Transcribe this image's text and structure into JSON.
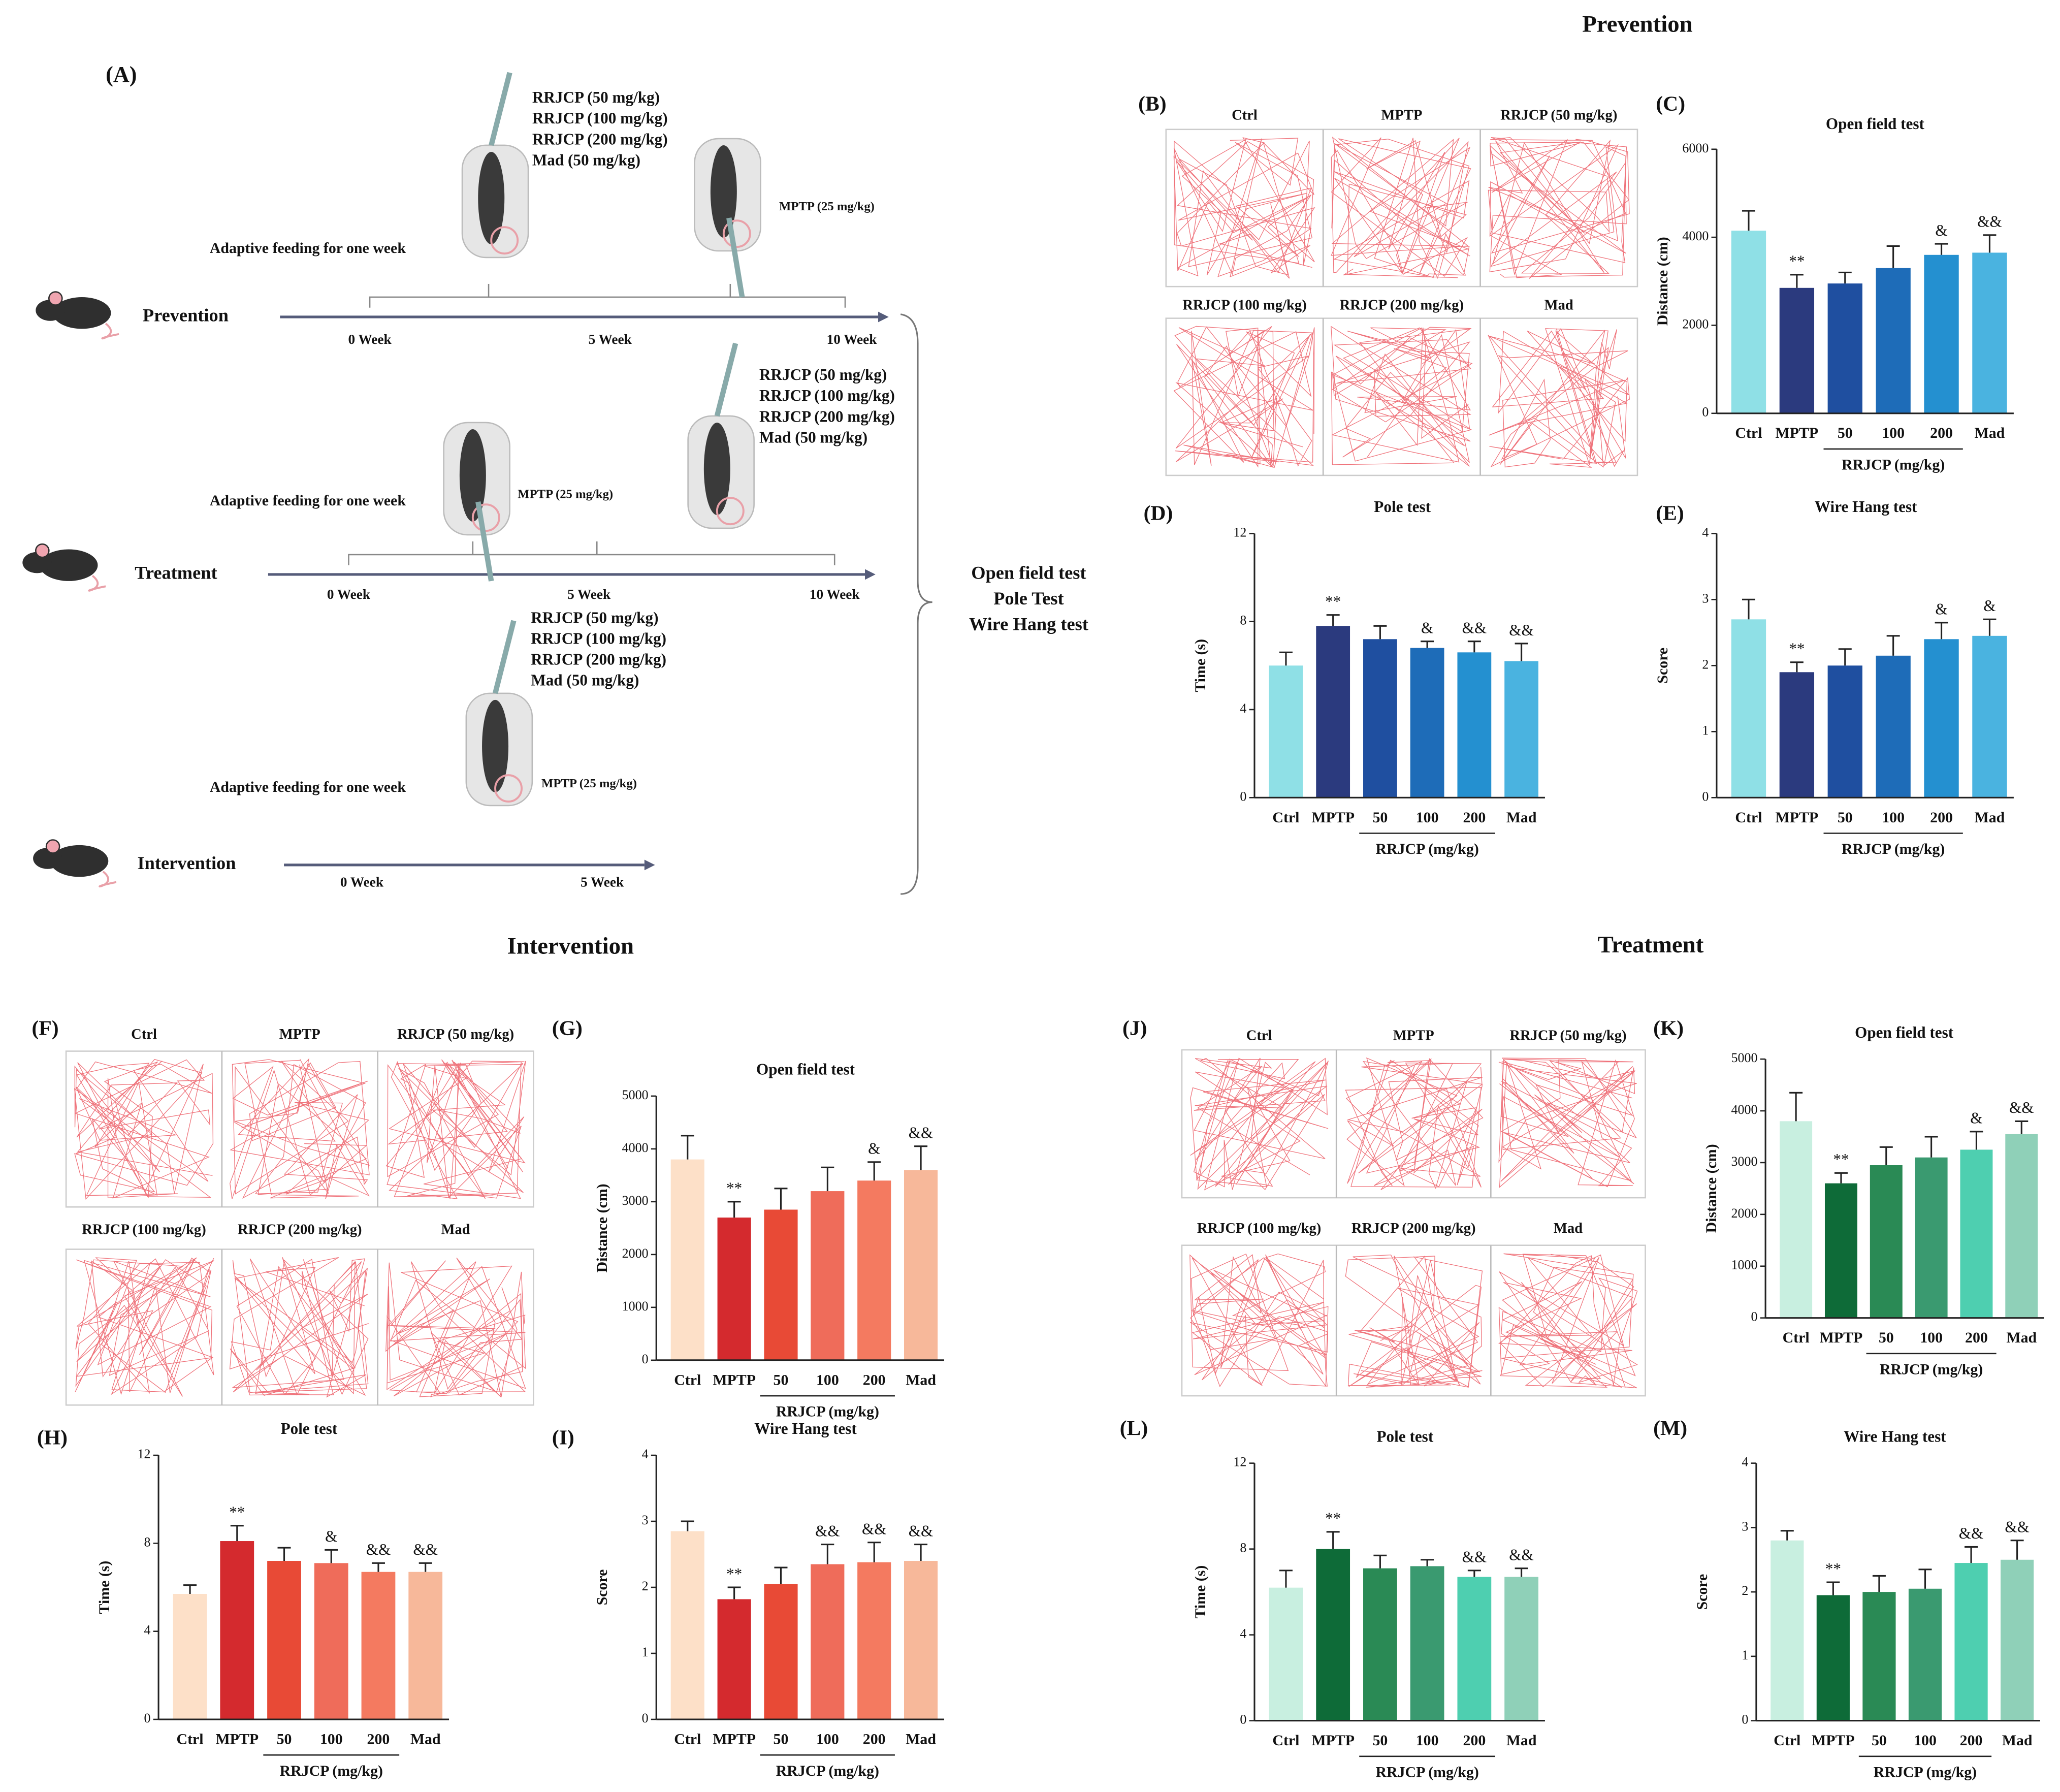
{
  "sections": {
    "prevention": "Prevention",
    "intervention": "Intervention",
    "treatment": "Treatment"
  },
  "panel_a": {
    "letter": "(A)",
    "tests": [
      "Open field test",
      "Pole Test",
      "Wire Hang test"
    ],
    "groups": [
      {
        "name": "Prevention",
        "adaptive": "Adaptive feeding for one week",
        "mptp": "MPTP (25 mg/kg)",
        "doses": [
          "RRJCP (50 mg/kg)",
          "RRJCP (100 mg/kg)",
          "RRJCP (200 mg/kg)",
          "Mad (50 mg/kg)"
        ],
        "weeks": [
          "0 Week",
          "5 Week",
          "10 Week"
        ]
      },
      {
        "name": "Treatment",
        "adaptive": "Adaptive feeding for one week",
        "mptp": "MPTP (25 mg/kg)",
        "doses": [
          "RRJCP (50 mg/kg)",
          "RRJCP (100 mg/kg)",
          "RRJCP (200 mg/kg)",
          "Mad (50 mg/kg)"
        ],
        "weeks": [
          "0 Week",
          "5 Week",
          "10 Week"
        ]
      },
      {
        "name": "Intervention",
        "adaptive": "Adaptive feeding for one week",
        "mptp": "MPTP (25 mg/kg)",
        "doses": [
          "RRJCP (50 mg/kg)",
          "RRJCP (100 mg/kg)",
          "RRJCP (200 mg/kg)",
          "Mad (50 mg/kg)"
        ],
        "weeks": [
          "0 Week",
          "5 Week"
        ]
      }
    ]
  },
  "trace_panels": [
    {
      "panel": "(B)",
      "labels": [
        "Ctrl",
        "MPTP",
        "RRJCP (50 mg/kg)",
        "RRJCP (100 mg/kg)",
        "RRJCP (200 mg/kg)",
        "Mad"
      ]
    },
    {
      "panel": "(F)",
      "labels": [
        "Ctrl",
        "MPTP",
        "RRJCP (50 mg/kg)",
        "RRJCP (100 mg/kg)",
        "RRJCP (200 mg/kg)",
        "Mad"
      ]
    },
    {
      "panel": "(J)",
      "labels": [
        "Ctrl",
        "MPTP",
        "RRJCP (50 mg/kg)",
        "RRJCP (100 mg/kg)",
        "RRJCP (200 mg/kg)",
        "Mad"
      ]
    }
  ],
  "chart_data": [
    {
      "type": "bar",
      "panel": "(C)",
      "title": "Open field test",
      "ylabel": "Distance (cm)",
      "group_label": "RRJCP (mg/kg)",
      "categories": [
        "Ctrl",
        "MPTP",
        "50",
        "100",
        "200",
        "Mad"
      ],
      "values": [
        4150,
        2850,
        2950,
        3300,
        3600,
        3650
      ],
      "errors": [
        450,
        300,
        250,
        500,
        250,
        400
      ],
      "annotations": [
        null,
        "**",
        null,
        null,
        "&",
        "&&"
      ],
      "colors": [
        "#8fe0e6",
        "#2b3a7e",
        "#1f4fa0",
        "#1e6cb8",
        "#2490d0",
        "#4ab3e0"
      ],
      "ylim": [
        0,
        6000
      ],
      "yticks": [
        0,
        2000,
        4000,
        6000
      ]
    },
    {
      "type": "bar",
      "panel": "(D)",
      "title": "Pole test",
      "ylabel": "Time (s)",
      "group_label": "RRJCP (mg/kg)",
      "categories": [
        "Ctrl",
        "MPTP",
        "50",
        "100",
        "200",
        "Mad"
      ],
      "values": [
        6.0,
        7.8,
        7.2,
        6.8,
        6.6,
        6.2
      ],
      "errors": [
        0.6,
        0.5,
        0.6,
        0.3,
        0.5,
        0.8
      ],
      "annotations": [
        null,
        "**",
        null,
        "&",
        "&&",
        "&&"
      ],
      "colors": [
        "#8fe0e6",
        "#2b3a7e",
        "#1f4fa0",
        "#1e6cb8",
        "#2490d0",
        "#4ab3e0"
      ],
      "ylim": [
        0,
        12
      ],
      "yticks": [
        0,
        4,
        8,
        12
      ]
    },
    {
      "type": "bar",
      "panel": "(E)",
      "title": "Wire Hang test",
      "ylabel": "Score",
      "group_label": "RRJCP (mg/kg)",
      "categories": [
        "Ctrl",
        "MPTP",
        "50",
        "100",
        "200",
        "Mad"
      ],
      "values": [
        2.7,
        1.9,
        2.0,
        2.15,
        2.4,
        2.45
      ],
      "errors": [
        0.3,
        0.15,
        0.25,
        0.3,
        0.25,
        0.25
      ],
      "annotations": [
        null,
        "**",
        null,
        null,
        "&",
        "&"
      ],
      "colors": [
        "#8fe0e6",
        "#2b3a7e",
        "#1f4fa0",
        "#1e6cb8",
        "#2490d0",
        "#4ab3e0"
      ],
      "ylim": [
        0,
        4
      ],
      "yticks": [
        0,
        1,
        2,
        3,
        4
      ]
    },
    {
      "type": "bar",
      "panel": "(G)",
      "title": "Open field test",
      "ylabel": "Distance (cm)",
      "group_label": "RRJCP (mg/kg)",
      "categories": [
        "Ctrl",
        "MPTP",
        "50",
        "100",
        "200",
        "Mad"
      ],
      "values": [
        3800,
        2700,
        2850,
        3200,
        3400,
        3600
      ],
      "errors": [
        450,
        300,
        400,
        450,
        350,
        450
      ],
      "annotations": [
        null,
        "**",
        null,
        null,
        "&",
        "&&"
      ],
      "colors": [
        "#fde0c8",
        "#d42a2e",
        "#e84a36",
        "#ef6c5a",
        "#f47a60",
        "#f7b89a"
      ],
      "ylim": [
        0,
        5000
      ],
      "yticks": [
        0,
        1000,
        2000,
        3000,
        4000,
        5000
      ]
    },
    {
      "type": "bar",
      "panel": "(H)",
      "title": "Pole test",
      "ylabel": "Time (s)",
      "group_label": "RRJCP (mg/kg)",
      "categories": [
        "Ctrl",
        "MPTP",
        "50",
        "100",
        "200",
        "Mad"
      ],
      "values": [
        5.7,
        8.1,
        7.2,
        7.1,
        6.7,
        6.7
      ],
      "errors": [
        0.4,
        0.7,
        0.6,
        0.6,
        0.4,
        0.4
      ],
      "annotations": [
        null,
        "**",
        null,
        "&",
        "&&",
        "&&"
      ],
      "colors": [
        "#fde0c8",
        "#d42a2e",
        "#e84a36",
        "#ef6c5a",
        "#f47a60",
        "#f7b89a"
      ],
      "ylim": [
        0,
        12
      ],
      "yticks": [
        0,
        4,
        8,
        12
      ]
    },
    {
      "type": "bar",
      "panel": "(I)",
      "title": "Wire Hang test",
      "ylabel": "Score",
      "group_label": "RRJCP (mg/kg)",
      "categories": [
        "Ctrl",
        "MPTP",
        "50",
        "100",
        "200",
        "Mad"
      ],
      "values": [
        2.85,
        1.82,
        2.05,
        2.35,
        2.38,
        2.4
      ],
      "errors": [
        0.15,
        0.18,
        0.25,
        0.3,
        0.3,
        0.25
      ],
      "annotations": [
        null,
        "**",
        null,
        "&&",
        "&&",
        "&&"
      ],
      "colors": [
        "#fde0c8",
        "#d42a2e",
        "#e84a36",
        "#ef6c5a",
        "#f47a60",
        "#f7b89a"
      ],
      "ylim": [
        0,
        4
      ],
      "yticks": [
        0,
        1,
        2,
        3,
        4
      ]
    },
    {
      "type": "bar",
      "panel": "(K)",
      "title": "Open field test",
      "ylabel": "Distance (cm)",
      "group_label": "RRJCP (mg/kg)",
      "categories": [
        "Ctrl",
        "MPTP",
        "50",
        "100",
        "200",
        "Mad"
      ],
      "values": [
        3800,
        2600,
        2950,
        3100,
        3250,
        3550
      ],
      "errors": [
        550,
        200,
        350,
        400,
        350,
        250
      ],
      "annotations": [
        null,
        "**",
        null,
        null,
        "&",
        "&&"
      ],
      "colors": [
        "#c8efe0",
        "#0e6b38",
        "#2a8a55",
        "#3a9a70",
        "#4ecfb0",
        "#8fd0b8"
      ],
      "ylim": [
        0,
        5000
      ],
      "yticks": [
        0,
        1000,
        2000,
        3000,
        4000,
        5000
      ]
    },
    {
      "type": "bar",
      "panel": "(L)",
      "title": "Pole test",
      "ylabel": "Time (s)",
      "group_label": "RRJCP (mg/kg)",
      "categories": [
        "Ctrl",
        "MPTP",
        "50",
        "100",
        "200",
        "Mad"
      ],
      "values": [
        6.2,
        8.0,
        7.1,
        7.2,
        6.7,
        6.7
      ],
      "errors": [
        0.8,
        0.8,
        0.6,
        0.3,
        0.3,
        0.4
      ],
      "annotations": [
        null,
        "**",
        null,
        null,
        "&&",
        "&&"
      ],
      "colors": [
        "#c8efe0",
        "#0e6b38",
        "#2a8a55",
        "#3a9a70",
        "#4ecfb0",
        "#8fd0b8"
      ],
      "ylim": [
        0,
        12
      ],
      "yticks": [
        0,
        4,
        8,
        12
      ]
    },
    {
      "type": "bar",
      "panel": "(M)",
      "title": "Wire Hang test",
      "ylabel": "Score",
      "group_label": "RRJCP (mg/kg)",
      "categories": [
        "Ctrl",
        "MPTP",
        "50",
        "100",
        "200",
        "Mad"
      ],
      "values": [
        2.8,
        1.95,
        2.0,
        2.05,
        2.45,
        2.5
      ],
      "errors": [
        0.15,
        0.2,
        0.25,
        0.3,
        0.25,
        0.3
      ],
      "annotations": [
        null,
        "**",
        null,
        null,
        "&&",
        "&&"
      ],
      "colors": [
        "#c8efe0",
        "#0e6b38",
        "#2a8a55",
        "#3a9a70",
        "#4ecfb0",
        "#8fd0b8"
      ],
      "ylim": [
        0,
        4
      ],
      "yticks": [
        0,
        1,
        2,
        3,
        4
      ]
    }
  ]
}
